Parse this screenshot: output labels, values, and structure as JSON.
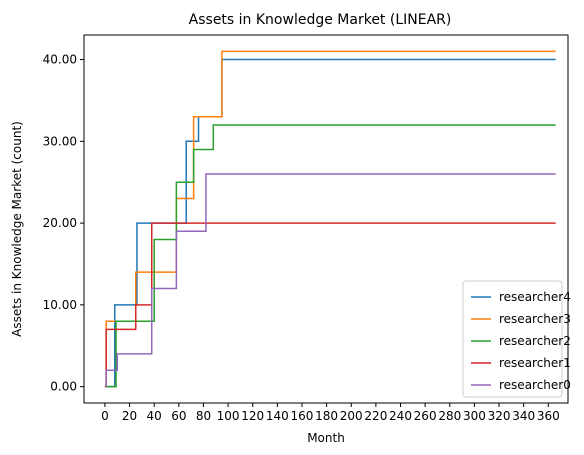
{
  "chart_data": {
    "type": "line",
    "step": "post",
    "title": "Assets in Knowledge Market (LINEAR)",
    "xlabel": "Month",
    "ylabel": "Assets in Knowledge Market (count)",
    "xlim": [
      -17,
      376
    ],
    "ylim": [
      -2,
      43
    ],
    "xticks": [
      0,
      20,
      40,
      60,
      80,
      100,
      120,
      140,
      160,
      180,
      200,
      220,
      240,
      260,
      280,
      300,
      320,
      340,
      360
    ],
    "xtick_labels": [
      "0",
      "20",
      "40",
      "60",
      "80",
      "100",
      "120",
      "140",
      "160",
      "180",
      "200",
      "220",
      "240",
      "260",
      "280",
      "300",
      "320",
      "340",
      "360"
    ],
    "yticks": [
      0,
      10,
      20,
      30,
      40
    ],
    "ytick_labels": [
      "0.00",
      "10.00",
      "20.00",
      "30.00",
      "40.00"
    ],
    "grid": false,
    "legend_position": "bottom-right",
    "series": [
      {
        "name": "researcher4",
        "color": "#1f77b4",
        "x": [
          0,
          1,
          7,
          8,
          25,
          26,
          36,
          38,
          56,
          58,
          64,
          66,
          72,
          76,
          86,
          89,
          93,
          95,
          366
        ],
        "y": [
          0,
          0,
          0,
          10,
          10,
          20,
          20,
          20,
          20,
          20,
          20,
          30,
          30,
          33,
          33,
          33,
          33,
          40,
          40
        ]
      },
      {
        "name": "researcher3",
        "color": "#ff7f0e",
        "x": [
          0,
          1,
          22,
          25,
          40,
          56,
          58,
          66,
          72,
          74,
          93,
          95,
          366
        ],
        "y": [
          0,
          8,
          8,
          14,
          14,
          14,
          23,
          23,
          33,
          33,
          33,
          41,
          41
        ]
      },
      {
        "name": "researcher2",
        "color": "#2ca02c",
        "x": [
          0,
          8,
          9,
          20,
          36,
          38,
          40,
          56,
          58,
          66,
          72,
          88,
          366
        ],
        "y": [
          0,
          0,
          8,
          8,
          8,
          8,
          18,
          18,
          25,
          25,
          29,
          32,
          32
        ]
      },
      {
        "name": "researcher1",
        "color": "#d62728",
        "x": [
          0,
          1,
          20,
          25,
          37,
          38,
          366
        ],
        "y": [
          0,
          7,
          7,
          10,
          10,
          20,
          20
        ]
      },
      {
        "name": "researcher0",
        "color": "#9467bd",
        "x": [
          0,
          1,
          9,
          10,
          36,
          38,
          56,
          58,
          80,
          82,
          366
        ],
        "y": [
          0,
          2,
          2,
          4,
          4,
          12,
          12,
          19,
          19,
          26,
          26
        ]
      }
    ]
  }
}
